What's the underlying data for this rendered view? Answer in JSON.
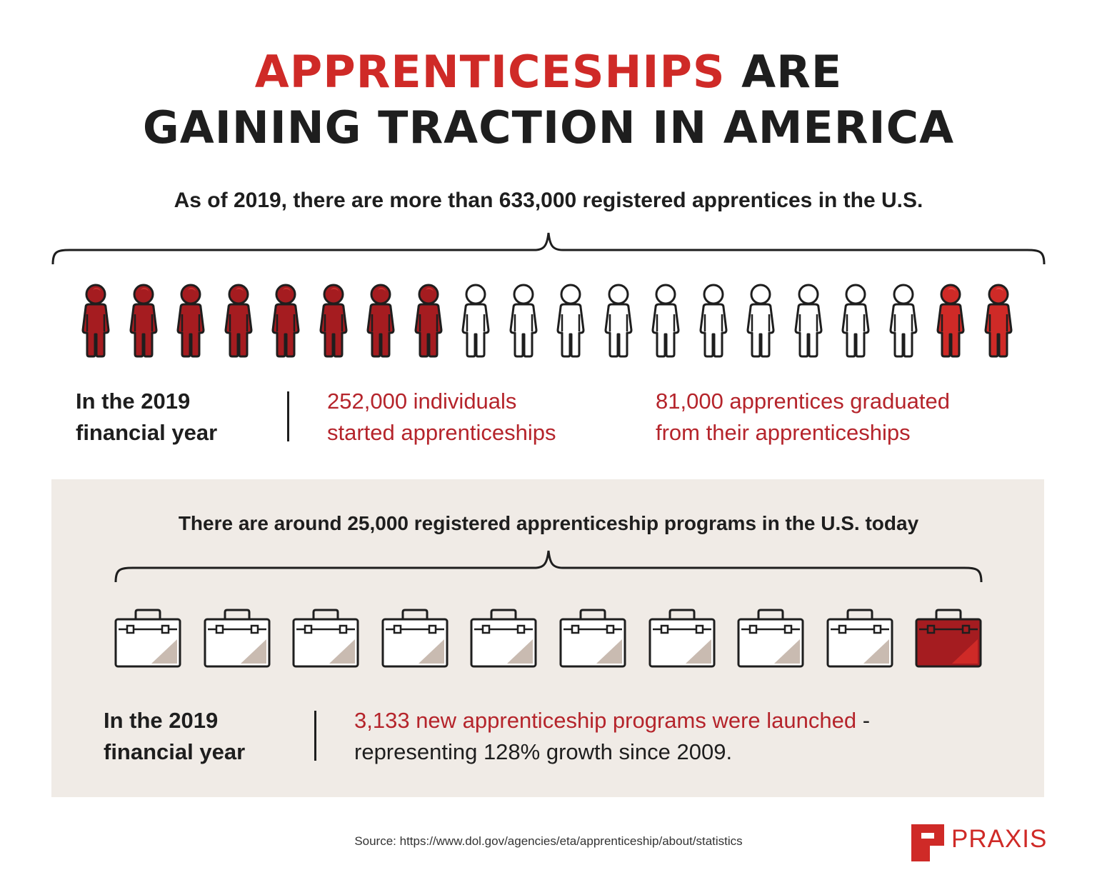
{
  "header": {
    "title_red": "APPRENTICESHIPS",
    "title_rest": " ARE",
    "title_line2": "GAINING TRACTION IN AMERICA"
  },
  "apprentices": {
    "headline": "As of 2019, there are more than 633,000 registered apprentices in the U.S.",
    "icons": [
      "dark-red",
      "dark-red",
      "dark-red",
      "dark-red",
      "dark-red",
      "dark-red",
      "dark-red",
      "dark-red",
      "white",
      "white",
      "white",
      "white",
      "white",
      "white",
      "white",
      "white",
      "white",
      "white",
      "red",
      "red"
    ],
    "period_label_1": "In the 2019",
    "period_label_2": "financial year",
    "started_1": "252,000 individuals",
    "started_2": "started apprenticeships",
    "graduated_1": "81,000 apprentices graduated",
    "graduated_2": "from their apprenticeships"
  },
  "programs": {
    "headline": "There are around 25,000 registered apprenticeship programs in the U.S. today",
    "icons": [
      "white",
      "white",
      "white",
      "white",
      "white",
      "white",
      "white",
      "white",
      "white",
      "red"
    ],
    "period_label_1": "In the 2019",
    "period_label_2": "financial year",
    "launched_red": "3,133 new apprenticeship programs were launched",
    "launched_rest": " -",
    "growth": "representing 128% growth since 2009."
  },
  "footer": {
    "source": "Source: https://www.dol.gov/agencies/eta/apprenticeship/about/statistics",
    "brand": "PRAXIS"
  },
  "colors": {
    "dark_red": "#a51c20",
    "red": "#cf2a27",
    "white_fill": "#ffffff",
    "outline": "#1e1e1e",
    "panel": "#f0ebe6",
    "bag_corner": "#c9bbb1"
  }
}
